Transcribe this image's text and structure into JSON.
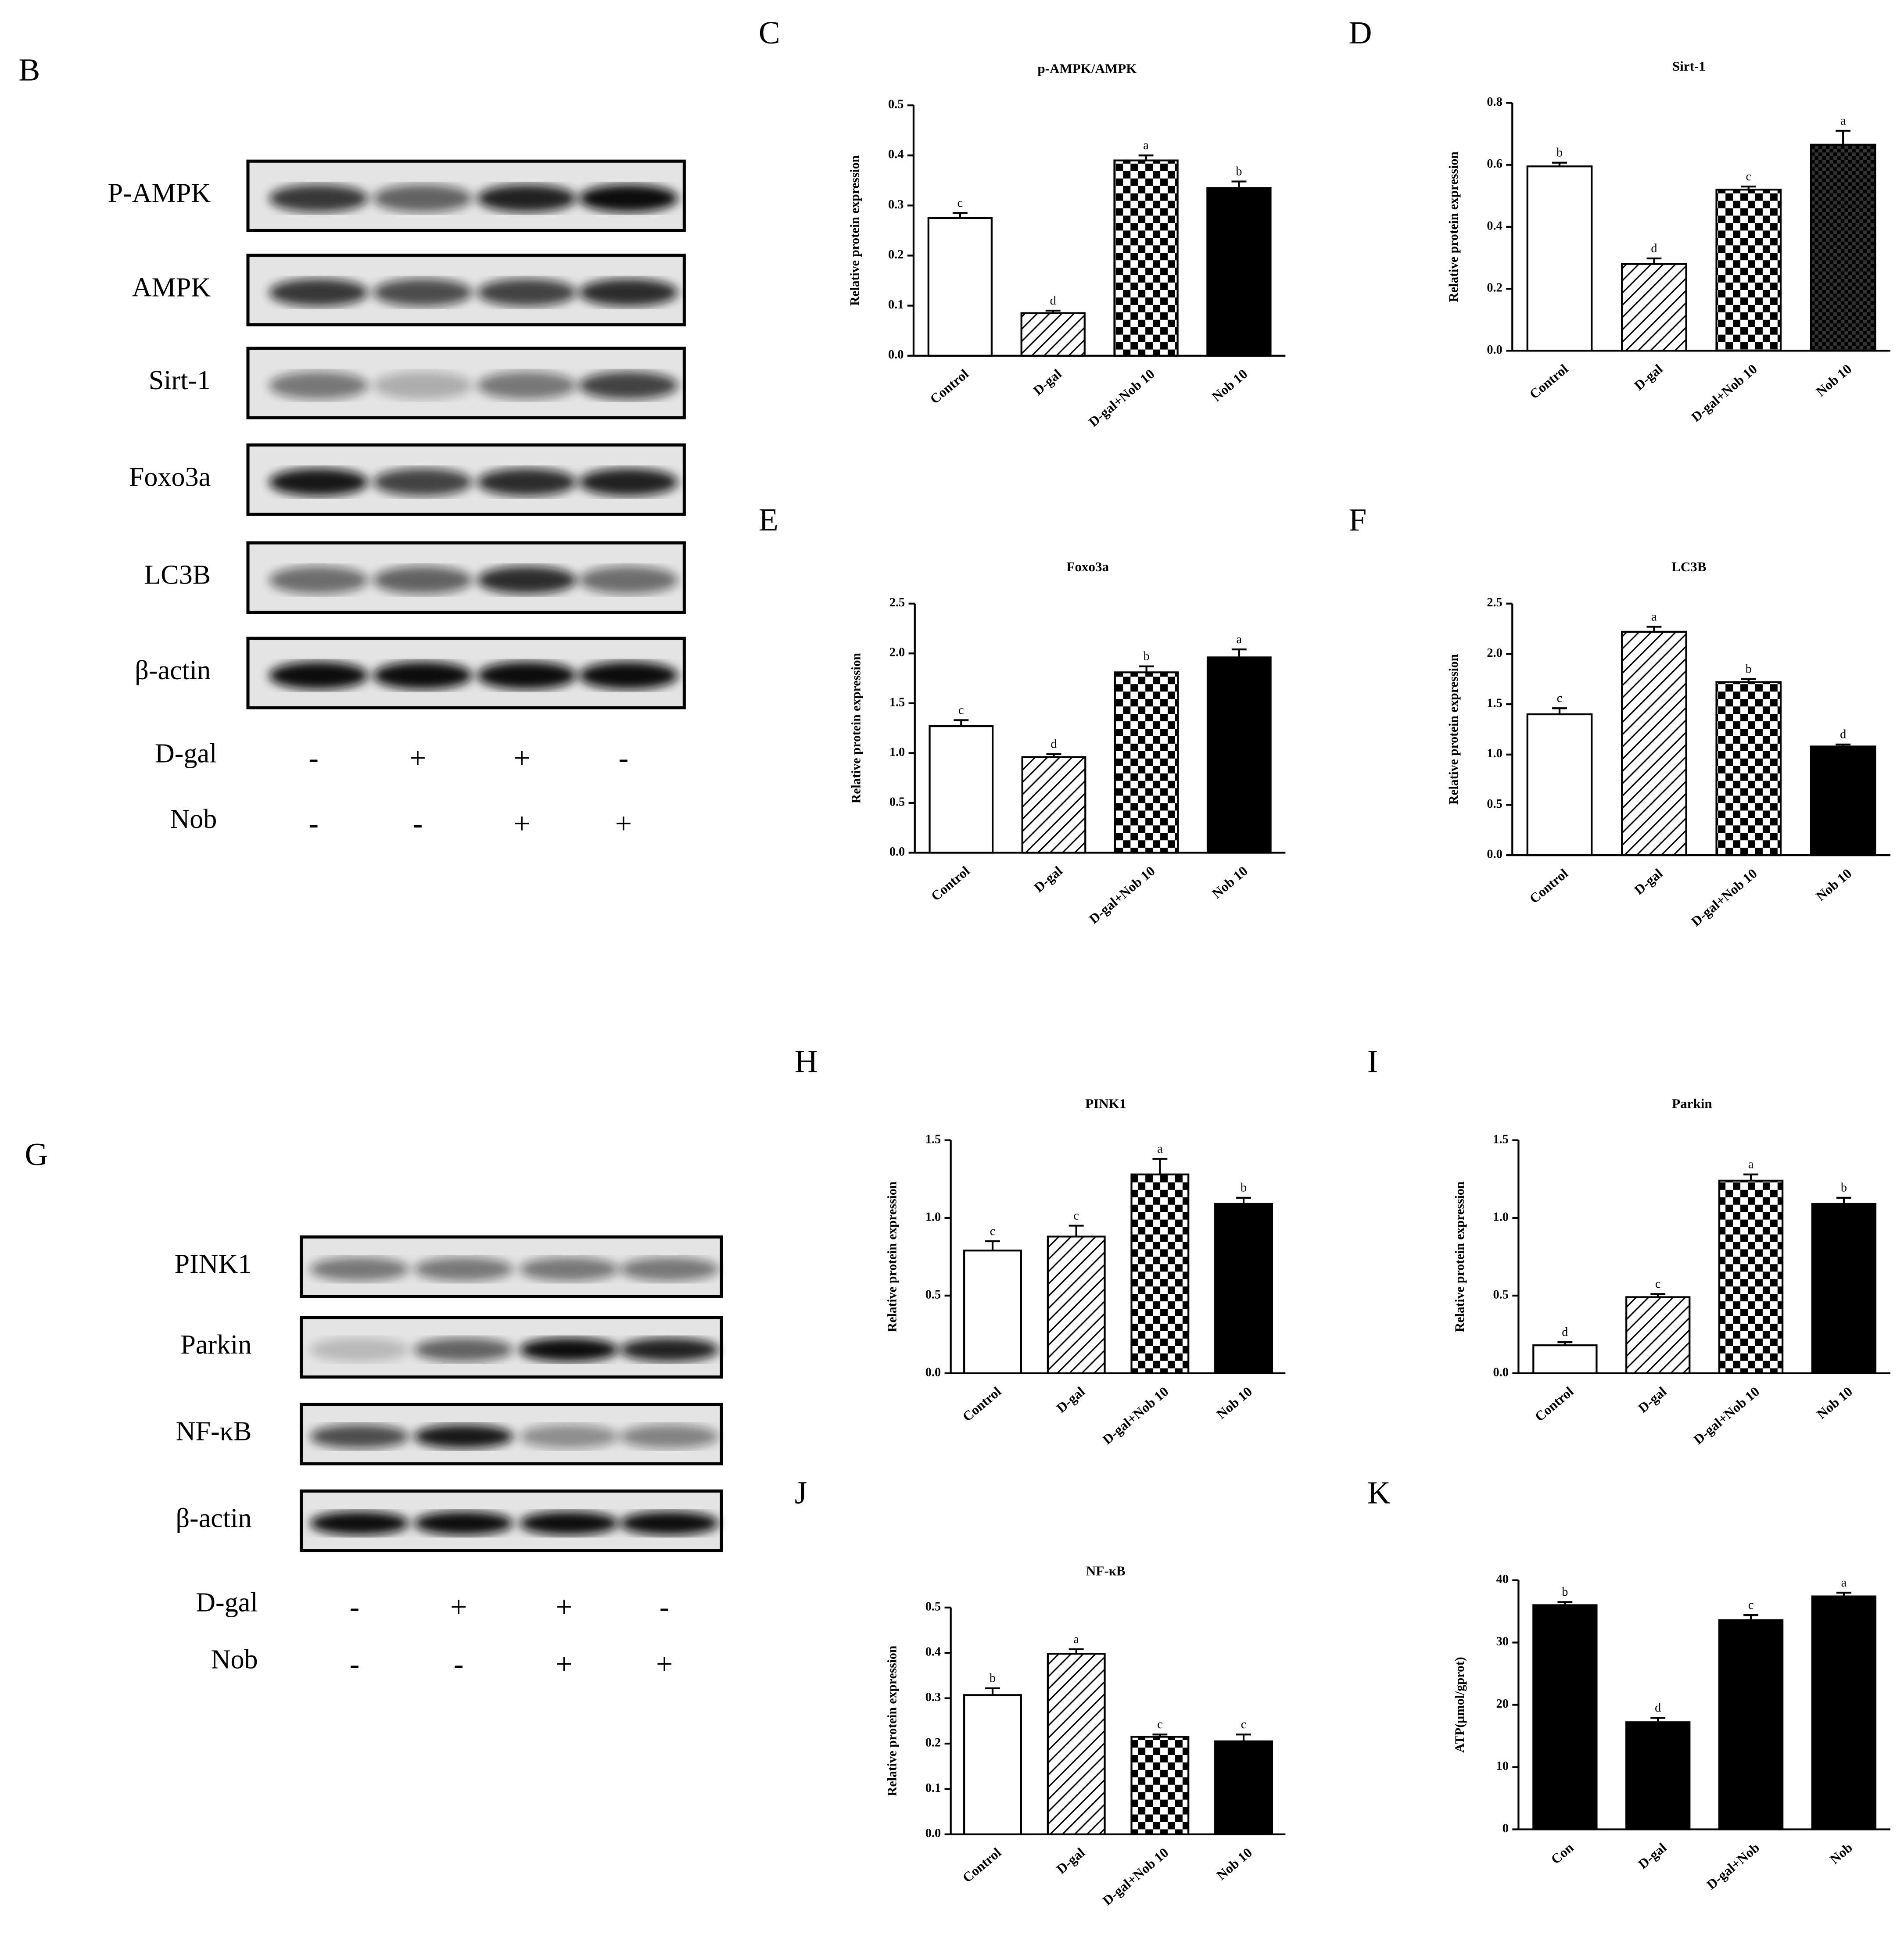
{
  "blots": [
    {
      "panel": "B",
      "rows": [
        "P-AMPK",
        "AMPK",
        "Sirt-1",
        "Foxo3a",
        "LC3B",
        "β-actin"
      ],
      "treatments": [
        {
          "name": "D-gal",
          "signs": [
            "-",
            "+",
            "+",
            "-"
          ]
        },
        {
          "name": "Nob",
          "signs": [
            "-",
            "-",
            "+",
            "+"
          ]
        }
      ]
    },
    {
      "panel": "G",
      "rows": [
        "PINK1",
        "Parkin",
        "NF-κB",
        "β-actin"
      ],
      "treatments": [
        {
          "name": "D-gal",
          "signs": [
            "-",
            "+",
            "+",
            "-"
          ]
        },
        {
          "name": "Nob",
          "signs": [
            "-",
            "-",
            "+",
            "+"
          ]
        }
      ]
    }
  ],
  "chart_data": [
    {
      "type": "bar",
      "panel": "C",
      "title": "p-AMPK/AMPK",
      "y_label": "Relative protein expression",
      "categories": [
        "Control",
        "D-gal",
        "D-gal+Nob 10",
        "Nob 10"
      ],
      "values": [
        0.275,
        0.085,
        0.39,
        0.335
      ],
      "errors": [
        0.01,
        0.005,
        0.01,
        0.013
      ],
      "annotations": [
        "c",
        "d",
        "a",
        "b"
      ],
      "fills": [
        "white",
        "hatch",
        "check",
        "black"
      ],
      "ylim": [
        0,
        0.5
      ],
      "yticks": [
        {
          "value": 0,
          "label": "0.0"
        },
        0.1,
        0.2,
        0.3,
        0.4,
        0.5
      ]
    },
    {
      "type": "bar",
      "panel": "D",
      "title": "Sirt-1",
      "y_label": "Relative protein expression",
      "categories": [
        "Control",
        "D-gal",
        "D-gal+Nob 10",
        "Nob 10"
      ],
      "values": [
        0.595,
        0.28,
        0.52,
        0.665
      ],
      "errors": [
        0.012,
        0.018,
        0.01,
        0.045
      ],
      "annotations": [
        "b",
        "d",
        "c",
        "a"
      ],
      "fills": [
        "white",
        "hatch",
        "check",
        "dark-check"
      ],
      "ylim": [
        0,
        0.8
      ],
      "yticks": [
        {
          "value": 0,
          "label": "0.0"
        },
        0.2,
        0.4,
        0.6,
        0.8
      ]
    },
    {
      "type": "bar",
      "panel": "E",
      "title": "Foxo3a",
      "y_label": "Relative protein expression",
      "categories": [
        "Control",
        "D-gal",
        "D-gal+Nob 10",
        "Nob 10"
      ],
      "values": [
        1.27,
        0.96,
        1.81,
        1.96
      ],
      "errors": [
        0.06,
        0.03,
        0.06,
        0.08
      ],
      "annotations": [
        "c",
        "d",
        "b",
        "a"
      ],
      "fills": [
        "white",
        "hatch",
        "check",
        "black"
      ],
      "ylim": [
        0,
        2.5
      ],
      "yticks": [
        {
          "value": 0,
          "label": "0.0"
        },
        0.5,
        {
          "value": 1,
          "label": "1.0"
        },
        1.5,
        {
          "value": 2,
          "label": "2.0"
        },
        2.5
      ]
    },
    {
      "type": "bar",
      "panel": "F",
      "title": "LC3B",
      "y_label": "Relative protein expression",
      "categories": [
        "Control",
        "D-gal",
        "D-gal+Nob 10",
        "Nob 10"
      ],
      "values": [
        1.4,
        2.22,
        1.72,
        1.08
      ],
      "errors": [
        0.06,
        0.05,
        0.03,
        0.02
      ],
      "annotations": [
        "c",
        "a",
        "b",
        "d"
      ],
      "fills": [
        "white",
        "hatch",
        "check",
        "black"
      ],
      "ylim": [
        0,
        2.5
      ],
      "yticks": [
        {
          "value": 0,
          "label": "0.0"
        },
        0.5,
        {
          "value": 1,
          "label": "1.0"
        },
        1.5,
        {
          "value": 2,
          "label": "2.0"
        },
        2.5
      ]
    },
    {
      "type": "bar",
      "panel": "H",
      "title": "PINK1",
      "y_label": "Relative protein expression",
      "categories": [
        "Control",
        "D-gal",
        "D-gal+Nob 10",
        "Nob 10"
      ],
      "values": [
        0.79,
        0.88,
        1.28,
        1.09
      ],
      "errors": [
        0.06,
        0.07,
        0.1,
        0.04
      ],
      "annotations": [
        "c",
        "c",
        "a",
        "b"
      ],
      "fills": [
        "white",
        "hatch",
        "check",
        "black"
      ],
      "ylim": [
        0,
        1.5
      ],
      "yticks": [
        {
          "value": 0,
          "label": "0.0"
        },
        0.5,
        {
          "value": 1,
          "label": "1.0"
        },
        1.5
      ]
    },
    {
      "type": "bar",
      "panel": "I",
      "title": "Parkin",
      "y_label": "Relative protein expression",
      "categories": [
        "Control",
        "D-gal",
        "D-gal+Nob 10",
        "Nob 10"
      ],
      "values": [
        0.18,
        0.49,
        1.24,
        1.09
      ],
      "errors": [
        0.02,
        0.02,
        0.04,
        0.04
      ],
      "annotations": [
        "d",
        "c",
        "a",
        "b"
      ],
      "fills": [
        "white",
        "hatch",
        "check",
        "black"
      ],
      "ylim": [
        0,
        1.5
      ],
      "yticks": [
        {
          "value": 0,
          "label": "0.0"
        },
        0.5,
        {
          "value": 1,
          "label": "1.0"
        },
        1.5
      ]
    },
    {
      "type": "bar",
      "panel": "J",
      "title": "NF-κB",
      "y_label": "Relative protein expression",
      "categories": [
        "Control",
        "D-gal",
        "D-gal+Nob 10",
        "Nob 10"
      ],
      "values": [
        0.307,
        0.398,
        0.215,
        0.205
      ],
      "errors": [
        0.015,
        0.01,
        0.005,
        0.015
      ],
      "annotations": [
        "b",
        "a",
        "c",
        "c"
      ],
      "fills": [
        "white",
        "hatch",
        "check",
        "black"
      ],
      "ylim": [
        0,
        0.5
      ],
      "yticks": [
        {
          "value": 0,
          "label": "0.0"
        },
        0.1,
        0.2,
        0.3,
        0.4,
        0.5
      ]
    },
    {
      "type": "bar",
      "panel": "K",
      "y_label": "ATP(μmol/gprot)",
      "categories": [
        "Con",
        "D-gal",
        "D-gal+Nob",
        "Nob"
      ],
      "values": [
        36,
        17.2,
        33.6,
        37.4
      ],
      "errors": [
        0.5,
        0.7,
        0.8,
        0.6
      ],
      "annotations": [
        "b",
        "d",
        "c",
        "a"
      ],
      "fills": [
        "black",
        "black",
        "black",
        "black"
      ],
      "ylim": [
        0,
        40
      ],
      "yticks": [
        0,
        10,
        20,
        30,
        40
      ]
    }
  ]
}
